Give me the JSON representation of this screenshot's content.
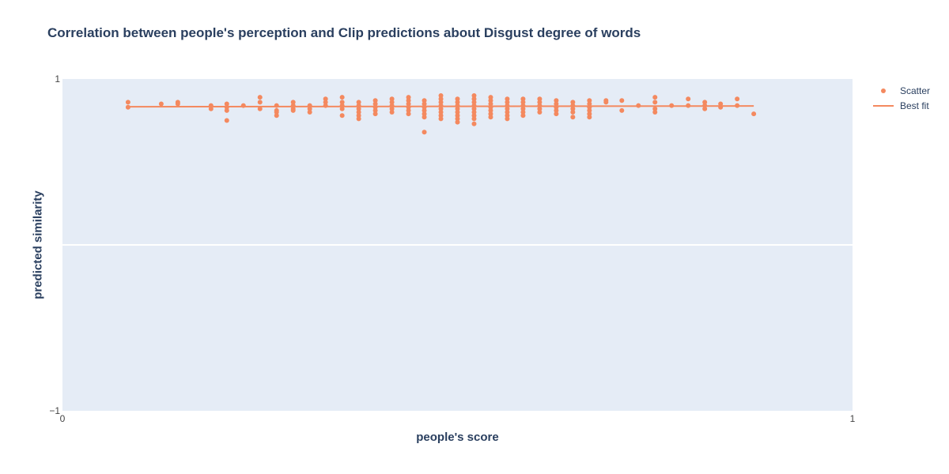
{
  "page": {
    "title": "Correlation between people's perception and Clip predictions about Disgust degree of words"
  },
  "colors": {
    "plot_bg": "#e5ecf6",
    "grid": "#ffffff",
    "series": "#f4895f",
    "text": "#2a3f5f",
    "tick": "#444444"
  },
  "legend": {
    "scatter_label": "Scatter",
    "line_label": "Best fit"
  },
  "chart_data": {
    "type": "scatter",
    "title": "Correlation between people's perception and Clip predictions about Disgust degree of words",
    "xlabel": "people's score",
    "ylabel": "predicted similarity",
    "xlim": [
      0,
      1
    ],
    "ylim": [
      -1,
      1
    ],
    "x_ticks": [
      "0",
      "1"
    ],
    "y_ticks": [
      "1",
      "−1"
    ],
    "grid": "on",
    "legend_position": "top-right",
    "series": [
      {
        "name": "Scatter",
        "mode": "markers",
        "x": [
          0.083,
          0.083,
          0.125,
          0.146,
          0.146,
          0.188,
          0.188,
          0.208,
          0.208,
          0.208,
          0.208,
          0.229,
          0.25,
          0.25,
          0.25,
          0.271,
          0.271,
          0.271,
          0.271,
          0.292,
          0.292,
          0.292,
          0.292,
          0.313,
          0.313,
          0.313,
          0.333,
          0.333,
          0.333,
          0.354,
          0.354,
          0.354,
          0.354,
          0.354,
          0.375,
          0.375,
          0.375,
          0.375,
          0.375,
          0.375,
          0.396,
          0.396,
          0.396,
          0.396,
          0.396,
          0.417,
          0.417,
          0.417,
          0.417,
          0.417,
          0.438,
          0.438,
          0.438,
          0.438,
          0.438,
          0.438,
          0.458,
          0.458,
          0.458,
          0.458,
          0.458,
          0.458,
          0.458,
          0.479,
          0.479,
          0.479,
          0.479,
          0.479,
          0.479,
          0.479,
          0.479,
          0.5,
          0.5,
          0.5,
          0.5,
          0.5,
          0.5,
          0.5,
          0.5,
          0.521,
          0.521,
          0.521,
          0.521,
          0.521,
          0.521,
          0.521,
          0.521,
          0.521,
          0.542,
          0.542,
          0.542,
          0.542,
          0.542,
          0.542,
          0.542,
          0.563,
          0.563,
          0.563,
          0.563,
          0.563,
          0.563,
          0.563,
          0.583,
          0.583,
          0.583,
          0.583,
          0.583,
          0.583,
          0.604,
          0.604,
          0.604,
          0.604,
          0.604,
          0.625,
          0.625,
          0.625,
          0.625,
          0.625,
          0.646,
          0.646,
          0.646,
          0.646,
          0.646,
          0.667,
          0.667,
          0.667,
          0.667,
          0.667,
          0.667,
          0.688,
          0.688,
          0.708,
          0.708,
          0.729,
          0.75,
          0.75,
          0.75,
          0.75,
          0.771,
          0.792,
          0.792,
          0.813,
          0.813,
          0.813,
          0.833,
          0.833,
          0.854,
          0.854,
          0.875
        ],
        "y": [
          0.86,
          0.83,
          0.85,
          0.86,
          0.85,
          0.84,
          0.82,
          0.85,
          0.83,
          0.81,
          0.75,
          0.84,
          0.89,
          0.86,
          0.82,
          0.84,
          0.81,
          0.8,
          0.78,
          0.86,
          0.84,
          0.82,
          0.81,
          0.84,
          0.82,
          0.8,
          0.88,
          0.86,
          0.84,
          0.89,
          0.86,
          0.84,
          0.82,
          0.78,
          0.86,
          0.84,
          0.82,
          0.8,
          0.78,
          0.76,
          0.87,
          0.85,
          0.83,
          0.81,
          0.79,
          0.88,
          0.86,
          0.84,
          0.82,
          0.8,
          0.89,
          0.87,
          0.85,
          0.83,
          0.81,
          0.79,
          0.87,
          0.85,
          0.83,
          0.81,
          0.79,
          0.77,
          0.68,
          0.9,
          0.88,
          0.86,
          0.84,
          0.82,
          0.8,
          0.78,
          0.76,
          0.88,
          0.86,
          0.84,
          0.82,
          0.8,
          0.78,
          0.76,
          0.74,
          0.9,
          0.88,
          0.86,
          0.84,
          0.82,
          0.8,
          0.78,
          0.76,
          0.73,
          0.89,
          0.87,
          0.85,
          0.83,
          0.81,
          0.79,
          0.77,
          0.88,
          0.86,
          0.84,
          0.82,
          0.8,
          0.78,
          0.76,
          0.88,
          0.86,
          0.84,
          0.82,
          0.8,
          0.78,
          0.88,
          0.86,
          0.84,
          0.82,
          0.8,
          0.87,
          0.85,
          0.83,
          0.81,
          0.79,
          0.86,
          0.84,
          0.82,
          0.8,
          0.77,
          0.87,
          0.85,
          0.83,
          0.81,
          0.79,
          0.77,
          0.87,
          0.86,
          0.87,
          0.81,
          0.84,
          0.89,
          0.86,
          0.82,
          0.8,
          0.84,
          0.88,
          0.84,
          0.86,
          0.84,
          0.82,
          0.85,
          0.83,
          0.88,
          0.84,
          0.79
        ],
        "marker_size": 6
      },
      {
        "name": "Best fit",
        "mode": "lines",
        "x": [
          0.083,
          0.875
        ],
        "y": [
          0.8325,
          0.8375
        ]
      }
    ]
  }
}
